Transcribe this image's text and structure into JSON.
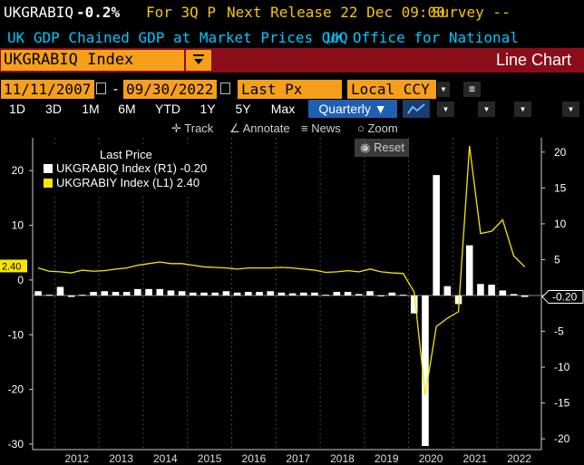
{
  "header": {
    "ticker": "UKGRABIQ",
    "change": "-0.2%",
    "period": "For 3Q P",
    "next_release": "Next Release 22 Dec 09:00",
    "survey": "Survey --",
    "description": "UK GDP Chained GDP at Market Prices QoQ",
    "source": "UK Office for National Statistics"
  },
  "security": {
    "field_value": "UKGRABIQ Index",
    "chart_type": "Line Chart"
  },
  "controls": {
    "start_date": "11/11/2007",
    "date_sep": "-",
    "end_date": "09/30/2022",
    "field": "Last Px",
    "currency": "Local CCY"
  },
  "periods": [
    "1D",
    "3D",
    "1M",
    "6M",
    "YTD",
    "1Y",
    "5Y",
    "Max"
  ],
  "frequency": "Quarterly",
  "tools": {
    "track": "Track",
    "annotate": "Annotate",
    "news": "News",
    "zoom": "Zoom",
    "reset": "Reset"
  },
  "legend": {
    "title": "Last Price",
    "rows": [
      {
        "name": "UKGRABIQ Index",
        "axis": "(R1)",
        "value": "-0.20",
        "color": "#ffffff"
      },
      {
        "name": "UKGRABIY Index",
        "axis": "(L1)",
        "value": "2.40",
        "color": "#f7e600"
      }
    ]
  },
  "chart_data": {
    "type": "line",
    "left_axis": {
      "ticks": [
        -30,
        -20,
        -10,
        0,
        10,
        20
      ],
      "range": [
        -31,
        26
      ]
    },
    "right_axis": {
      "ticks": [
        -20,
        -15,
        -10,
        -5,
        0,
        5,
        10,
        15,
        20
      ],
      "range": [
        -21.5,
        22
      ]
    },
    "x_ticks": [
      "2012",
      "2013",
      "2014",
      "2015",
      "2016",
      "2017",
      "2018",
      "2019",
      "2020",
      "2021",
      "2022"
    ],
    "x_range": [
      2011.5,
      2023.0
    ],
    "last_value_labels": {
      "left": "2.40",
      "right": "-0.20"
    },
    "series": [
      {
        "name": "UKGRABIQ Index",
        "kind": "bar",
        "axis": "right",
        "color": "#ffffff",
        "x": [
          2011.625,
          2011.875,
          2012.125,
          2012.375,
          2012.625,
          2012.875,
          2013.125,
          2013.375,
          2013.625,
          2013.875,
          2014.125,
          2014.375,
          2014.625,
          2014.875,
          2015.125,
          2015.375,
          2015.625,
          2015.875,
          2016.125,
          2016.375,
          2016.625,
          2016.875,
          2017.125,
          2017.375,
          2017.625,
          2017.875,
          2018.125,
          2018.375,
          2018.625,
          2018.875,
          2019.125,
          2019.375,
          2019.625,
          2019.875,
          2020.125,
          2020.375,
          2020.625,
          2020.875,
          2021.125,
          2021.375,
          2021.625,
          2021.875,
          2022.125,
          2022.375,
          2022.625
        ],
        "values": [
          0.6,
          0.1,
          1.2,
          -0.2,
          0.1,
          0.5,
          0.6,
          0.5,
          0.5,
          0.9,
          0.9,
          0.9,
          0.7,
          0.6,
          0.4,
          0.4,
          0.4,
          0.6,
          0.4,
          0.5,
          0.5,
          0.6,
          0.4,
          0.3,
          0.4,
          0.4,
          0.1,
          0.5,
          0.5,
          0.2,
          0.6,
          -0.1,
          0.4,
          0.1,
          -2.5,
          -21.0,
          16.8,
          1.3,
          -1.2,
          7.0,
          1.6,
          1.5,
          0.7,
          0.2,
          -0.2
        ]
      },
      {
        "name": "UKGRABIY Index",
        "kind": "line",
        "axis": "left",
        "color": "#f7e600",
        "x": [
          2011.625,
          2011.875,
          2012.125,
          2012.375,
          2012.625,
          2012.875,
          2013.125,
          2013.375,
          2013.625,
          2013.875,
          2014.125,
          2014.375,
          2014.625,
          2014.875,
          2015.125,
          2015.375,
          2015.625,
          2015.875,
          2016.125,
          2016.375,
          2016.625,
          2016.875,
          2017.125,
          2017.375,
          2017.625,
          2017.875,
          2018.125,
          2018.375,
          2018.625,
          2018.875,
          2019.125,
          2019.375,
          2019.625,
          2019.875,
          2020.125,
          2020.375,
          2020.625,
          2020.875,
          2021.125,
          2021.375,
          2021.625,
          2021.875,
          2022.125,
          2022.375,
          2022.625
        ],
        "values": [
          2.2,
          1.6,
          1.5,
          1.3,
          1.8,
          1.6,
          1.7,
          2.0,
          2.2,
          2.7,
          3.0,
          3.3,
          3.0,
          3.0,
          2.7,
          2.4,
          2.3,
          2.2,
          2.0,
          2.2,
          2.2,
          2.2,
          2.3,
          2.2,
          2.0,
          1.8,
          1.4,
          1.5,
          1.7,
          1.5,
          2.0,
          1.5,
          1.3,
          1.2,
          -2.2,
          -21.0,
          -8.5,
          -7.0,
          -5.8,
          24.5,
          8.5,
          8.9,
          11.0,
          4.4,
          2.4
        ]
      }
    ]
  }
}
